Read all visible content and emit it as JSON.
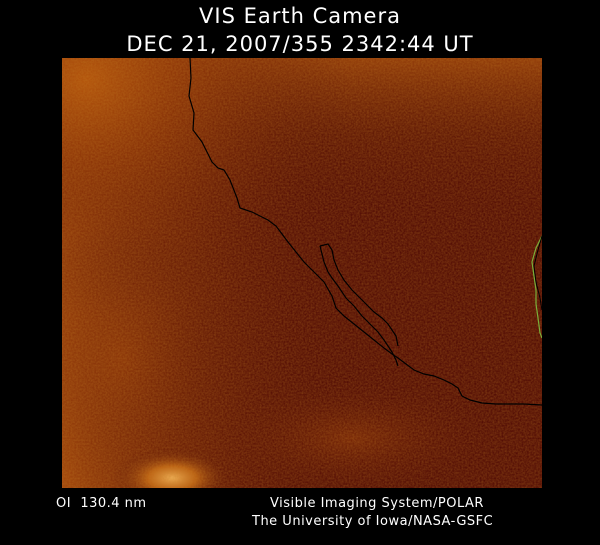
{
  "header": {
    "title": "VIS Earth Camera",
    "timestamp": "DEC 21, 2007/355 2342:44 UT"
  },
  "footer": {
    "wavelength": "OI  130.4 nm",
    "instrument": "Visible Imaging System/POLAR",
    "institution": "The University of Iowa/NASA-GSFC"
  },
  "colors": {
    "background": "#000000",
    "image_dark": "#4a0402",
    "image_glow": "#c4620e",
    "coastline": "#000000",
    "border_line": "#7ab03a"
  }
}
